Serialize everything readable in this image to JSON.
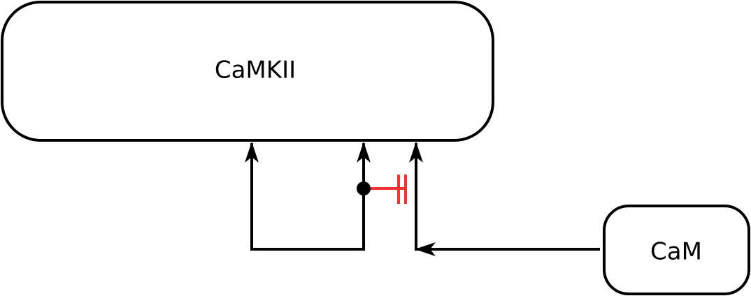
{
  "nodes": [
    {
      "label": "CaMKII"
    },
    {
      "label": "CaM"
    }
  ]
}
